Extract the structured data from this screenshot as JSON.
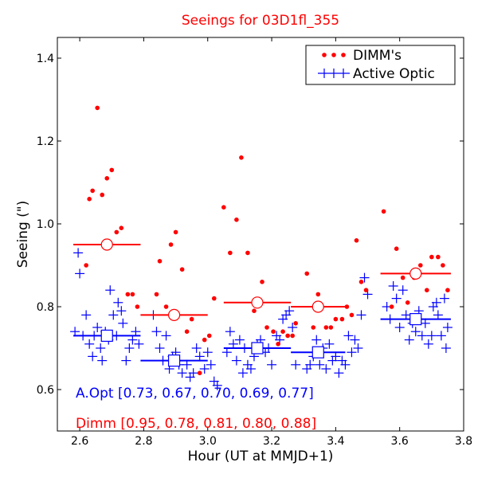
{
  "chart_data": {
    "type": "scatter",
    "title": "Seeings for 03D1fl_355",
    "xlabel": "Hour (UT at MMJD+1)",
    "ylabel": "Seeing (\")",
    "xlim": [
      2.53,
      3.8
    ],
    "ylim": [
      0.5,
      1.45
    ],
    "x_ticks": [
      2.6,
      2.8,
      3.0,
      3.2,
      3.4,
      3.6,
      3.8
    ],
    "x_tick_labels": [
      "2.6",
      "2.8",
      "3.0",
      "3.2",
      "3.4",
      "3.6",
      "3.8"
    ],
    "y_ticks": [
      0.6,
      0.8,
      1.0,
      1.2,
      1.4
    ],
    "y_tick_labels": [
      "0.6",
      "0.8",
      "1.0",
      "1.2",
      "1.4"
    ],
    "grid": false,
    "legend_position": "top-right",
    "colors": {
      "dimm": "#ff0000",
      "active_optic": "#0000ff",
      "title": "#ff0000"
    },
    "series": [
      {
        "name": "DIMM's",
        "marker": "dot",
        "points": [
          [
            2.62,
            0.9
          ],
          [
            2.63,
            1.06
          ],
          [
            2.64,
            1.08
          ],
          [
            2.655,
            1.28
          ],
          [
            2.67,
            1.07
          ],
          [
            2.685,
            1.11
          ],
          [
            2.7,
            1.13
          ],
          [
            2.715,
            0.98
          ],
          [
            2.73,
            0.99
          ],
          [
            2.75,
            0.83
          ],
          [
            2.765,
            0.83
          ],
          [
            2.78,
            0.8
          ],
          [
            2.84,
            0.83
          ],
          [
            2.85,
            0.91
          ],
          [
            2.87,
            0.8
          ],
          [
            2.885,
            0.95
          ],
          [
            2.9,
            0.98
          ],
          [
            2.92,
            0.89
          ],
          [
            2.935,
            0.74
          ],
          [
            2.95,
            0.77
          ],
          [
            2.975,
            0.64
          ],
          [
            2.99,
            0.72
          ],
          [
            3.005,
            0.73
          ],
          [
            3.02,
            0.82
          ],
          [
            3.05,
            1.04
          ],
          [
            3.07,
            0.93
          ],
          [
            3.09,
            1.01
          ],
          [
            3.105,
            1.16
          ],
          [
            3.125,
            0.93
          ],
          [
            3.145,
            0.79
          ],
          [
            3.17,
            0.86
          ],
          [
            3.185,
            0.75
          ],
          [
            3.205,
            0.74
          ],
          [
            3.22,
            0.71
          ],
          [
            3.235,
            0.74
          ],
          [
            3.25,
            0.73
          ],
          [
            3.265,
            0.73
          ],
          [
            3.275,
            0.76
          ],
          [
            3.31,
            0.88
          ],
          [
            3.33,
            0.75
          ],
          [
            3.345,
            0.83
          ],
          [
            3.37,
            0.75
          ],
          [
            3.385,
            0.75
          ],
          [
            3.4,
            0.77
          ],
          [
            3.42,
            0.77
          ],
          [
            3.435,
            0.8
          ],
          [
            3.45,
            0.78
          ],
          [
            3.465,
            0.96
          ],
          [
            3.48,
            0.86
          ],
          [
            3.495,
            0.84
          ],
          [
            3.55,
            1.03
          ],
          [
            3.575,
            0.8
          ],
          [
            3.59,
            0.94
          ],
          [
            3.61,
            0.87
          ],
          [
            3.625,
            0.81
          ],
          [
            3.645,
            0.87
          ],
          [
            3.665,
            0.9
          ],
          [
            3.685,
            0.84
          ],
          [
            3.7,
            0.92
          ],
          [
            3.72,
            0.92
          ],
          [
            3.735,
            0.9
          ],
          [
            3.75,
            0.84
          ]
        ]
      },
      {
        "name": "Active Optic",
        "marker": "plus",
        "points": [
          [
            2.585,
            0.74
          ],
          [
            2.595,
            0.93
          ],
          [
            2.6,
            0.88
          ],
          [
            2.61,
            0.73
          ],
          [
            2.62,
            0.78
          ],
          [
            2.63,
            0.71
          ],
          [
            2.64,
            0.68
          ],
          [
            2.645,
            0.73
          ],
          [
            2.655,
            0.75
          ],
          [
            2.665,
            0.7
          ],
          [
            2.67,
            0.67
          ],
          [
            2.68,
            0.74
          ],
          [
            2.69,
            0.72
          ],
          [
            2.695,
            0.84
          ],
          [
            2.705,
            0.78
          ],
          [
            2.715,
            0.73
          ],
          [
            2.72,
            0.81
          ],
          [
            2.73,
            0.79
          ],
          [
            2.735,
            0.76
          ],
          [
            2.745,
            0.67
          ],
          [
            2.755,
            0.7
          ],
          [
            2.765,
            0.72
          ],
          [
            2.775,
            0.74
          ],
          [
            2.785,
            0.71
          ],
          [
            2.83,
            0.78
          ],
          [
            2.84,
            0.74
          ],
          [
            2.85,
            0.7
          ],
          [
            2.86,
            0.67
          ],
          [
            2.87,
            0.73
          ],
          [
            2.88,
            0.65
          ],
          [
            2.89,
            0.68
          ],
          [
            2.9,
            0.69
          ],
          [
            2.91,
            0.66
          ],
          [
            2.92,
            0.64
          ],
          [
            2.935,
            0.66
          ],
          [
            2.945,
            0.63
          ],
          [
            2.955,
            0.64
          ],
          [
            2.965,
            0.7
          ],
          [
            2.975,
            0.68
          ],
          [
            2.99,
            0.65
          ],
          [
            3.0,
            0.69
          ],
          [
            3.01,
            0.66
          ],
          [
            3.02,
            0.62
          ],
          [
            3.03,
            0.61
          ],
          [
            3.06,
            0.69
          ],
          [
            3.07,
            0.74
          ],
          [
            3.08,
            0.71
          ],
          [
            3.09,
            0.67
          ],
          [
            3.1,
            0.72
          ],
          [
            3.11,
            0.64
          ],
          [
            3.115,
            0.7
          ],
          [
            3.125,
            0.66
          ],
          [
            3.135,
            0.65
          ],
          [
            3.145,
            0.68
          ],
          [
            3.155,
            0.71
          ],
          [
            3.165,
            0.72
          ],
          [
            3.18,
            0.69
          ],
          [
            3.19,
            0.7
          ],
          [
            3.2,
            0.66
          ],
          [
            3.215,
            0.73
          ],
          [
            3.225,
            0.72
          ],
          [
            3.235,
            0.77
          ],
          [
            3.245,
            0.78
          ],
          [
            3.255,
            0.79
          ],
          [
            3.265,
            0.75
          ],
          [
            3.275,
            0.66
          ],
          [
            3.31,
            0.65
          ],
          [
            3.32,
            0.66
          ],
          [
            3.33,
            0.68
          ],
          [
            3.34,
            0.72
          ],
          [
            3.35,
            0.66
          ],
          [
            3.36,
            0.7
          ],
          [
            3.37,
            0.65
          ],
          [
            3.38,
            0.71
          ],
          [
            3.39,
            0.67
          ],
          [
            3.4,
            0.68
          ],
          [
            3.41,
            0.64
          ],
          [
            3.42,
            0.67
          ],
          [
            3.43,
            0.66
          ],
          [
            3.44,
            0.73
          ],
          [
            3.45,
            0.69
          ],
          [
            3.46,
            0.72
          ],
          [
            3.47,
            0.7
          ],
          [
            3.48,
            0.78
          ],
          [
            3.49,
            0.87
          ],
          [
            3.5,
            0.83
          ],
          [
            3.56,
            0.8
          ],
          [
            3.57,
            0.77
          ],
          [
            3.58,
            0.85
          ],
          [
            3.59,
            0.82
          ],
          [
            3.6,
            0.75
          ],
          [
            3.61,
            0.84
          ],
          [
            3.62,
            0.78
          ],
          [
            3.63,
            0.72
          ],
          [
            3.64,
            0.76
          ],
          [
            3.65,
            0.74
          ],
          [
            3.66,
            0.79
          ],
          [
            3.67,
            0.73
          ],
          [
            3.68,
            0.76
          ],
          [
            3.69,
            0.71
          ],
          [
            3.7,
            0.73
          ],
          [
            3.705,
            0.8
          ],
          [
            3.715,
            0.81
          ],
          [
            3.72,
            0.78
          ],
          [
            3.73,
            0.73
          ],
          [
            3.74,
            0.82
          ],
          [
            3.745,
            0.7
          ],
          [
            3.75,
            0.75
          ]
        ]
      }
    ],
    "averages": {
      "dimm": [
        {
          "x_start": 2.58,
          "x_end": 2.79,
          "value": 0.95
        },
        {
          "x_start": 2.79,
          "x_end": 3.0,
          "value": 0.78
        },
        {
          "x_start": 3.05,
          "x_end": 3.26,
          "value": 0.81
        },
        {
          "x_start": 3.26,
          "x_end": 3.43,
          "value": 0.8
        },
        {
          "x_start": 3.54,
          "x_end": 3.76,
          "value": 0.88
        }
      ],
      "active_optic": [
        {
          "x_start": 2.58,
          "x_end": 2.79,
          "value": 0.73
        },
        {
          "x_start": 2.79,
          "x_end": 3.0,
          "value": 0.67
        },
        {
          "x_start": 3.05,
          "x_end": 3.26,
          "value": 0.7
        },
        {
          "x_start": 3.26,
          "x_end": 3.43,
          "value": 0.69
        },
        {
          "x_start": 3.54,
          "x_end": 3.76,
          "value": 0.77
        }
      ]
    },
    "annotations": {
      "aopt": "A.Opt [0.73, 0.67, 0.70, 0.69, 0.77]",
      "dimm": "Dimm [0.95, 0.78, 0.81, 0.80, 0.88]"
    }
  }
}
